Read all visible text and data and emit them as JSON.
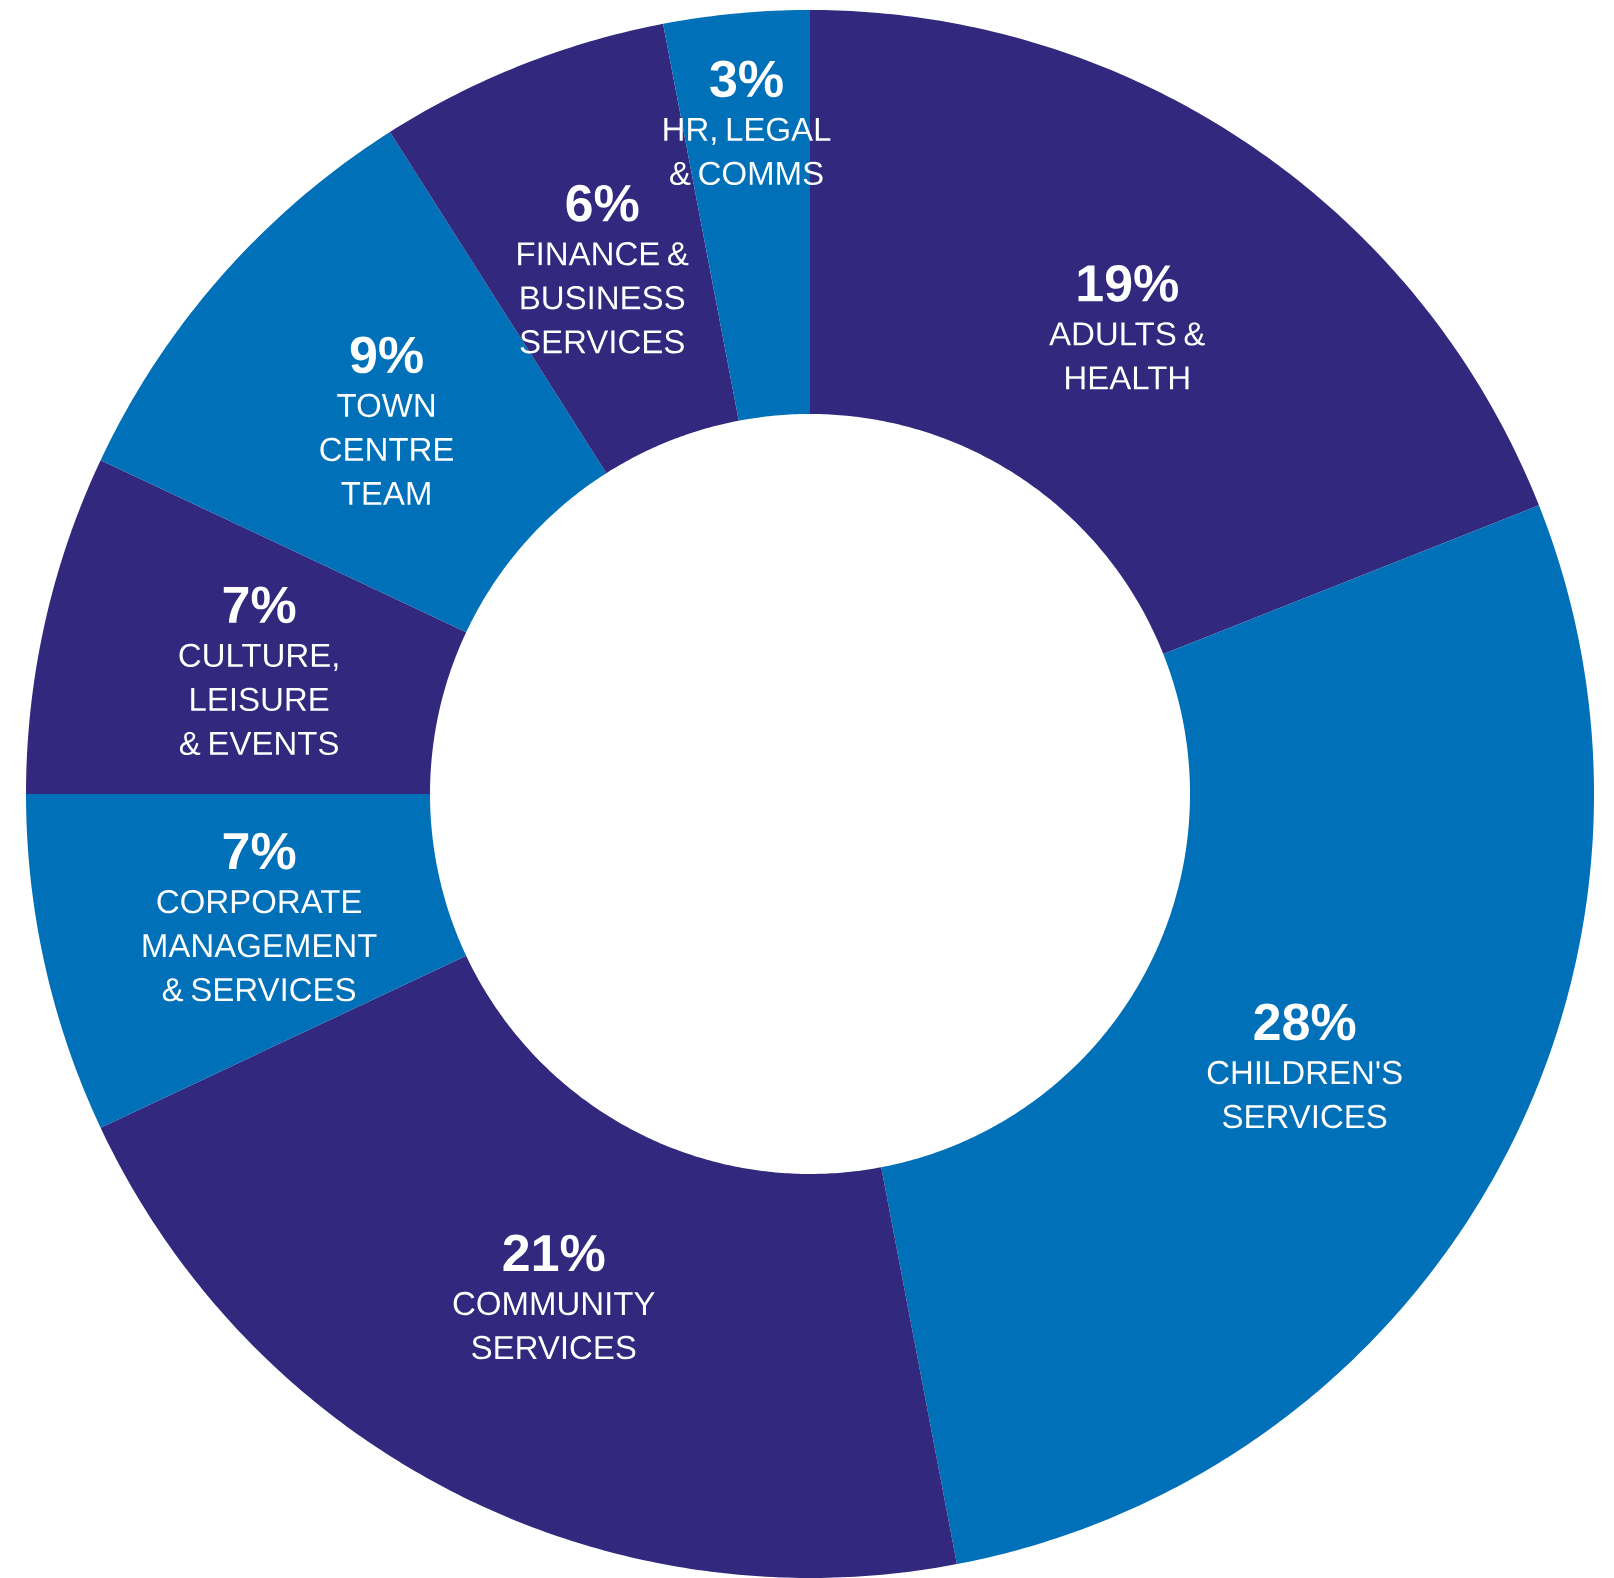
{
  "chart_data": {
    "type": "donut",
    "categories": [
      "ADULTS & HEALTH",
      "CHILDREN'S SERVICES",
      "COMMUNITY SERVICES",
      "CORPORATE MANAGEMENT & SERVICES",
      "CULTURE, LEISURE & EVENTS",
      "TOWN CENTRE TEAM",
      "FINANCE & BUSINESS SERVICES",
      "HR, LEGAL & COMMS"
    ],
    "values": [
      19,
      28,
      21,
      7,
      7,
      9,
      6,
      3
    ],
    "value_labels": [
      "19%",
      "28%",
      "21%",
      "7%",
      "7%",
      "9%",
      "6%",
      "3%"
    ],
    "colors": [
      "#32287e",
      "#0070b9",
      "#32287e",
      "#0070b9",
      "#32287e",
      "#0070b9",
      "#32287e",
      "#0070b9"
    ],
    "legend": false
  }
}
